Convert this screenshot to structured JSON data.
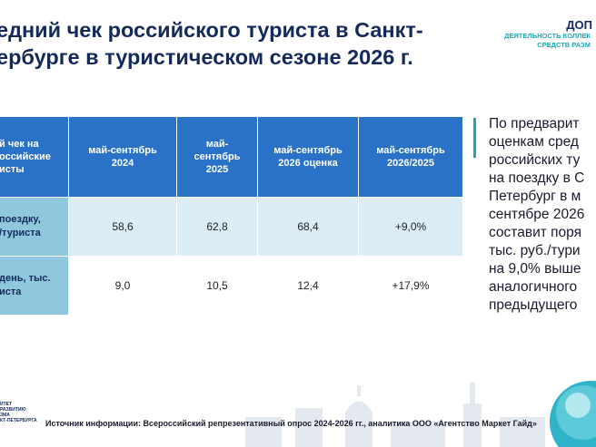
{
  "title": {
    "line1": "едний чек российского туриста в Санкт-",
    "line2": "ербурге в туристическом сезоне 2026 г."
  },
  "header_right": {
    "big": "ДОП",
    "small1": "ДЕЯТЕЛЬНОСТЬ КОЛЛЕК",
    "small2": "СРЕДСТВ РАЗМ"
  },
  "table": {
    "headers": [
      "й чек на\nоссийские\nисты",
      "май-сентябрь\n2024",
      "май-\nсентябрь\n2025",
      "май-сентябрь\n2026 оценка",
      "май-сентябрь\n2026/2025"
    ],
    "rows": [
      {
        "label": "поездку,\n/туриста",
        "values": [
          "58,6",
          "62,8",
          "68,4",
          "+9,0%"
        ]
      },
      {
        "label": "день, тыс.\nиста",
        "values": [
          "9,0",
          "10,5",
          "12,4",
          "+17,9%"
        ]
      }
    ]
  },
  "side_text": [
    "По предварит",
    "оценкам сред",
    "российских ту",
    "на поездку в С",
    "Петербург в м",
    "сентябре 2026",
    "составит поря",
    "тыс. руб./тури",
    "на 9,0% выше",
    "аналогичного",
    "предыдущего"
  ],
  "source": "Источник информации: Всероссийский репрезентативный опрос 2024-2026 гг., аналитика ООО «Агентство Маркет Гайд»",
  "logo_lines": [
    "ИТЕТ",
    "РАЗВИТИЮ",
    "ЗМА",
    "КТ-ПЕТЕРБУРГА"
  ],
  "colors": {
    "title": "#152a5c",
    "header_bg": "#2a72c8",
    "row_label_bg": "#8fc7dd",
    "row_alt_bg": "#dcedf6",
    "accent": "#1aa9b4"
  }
}
